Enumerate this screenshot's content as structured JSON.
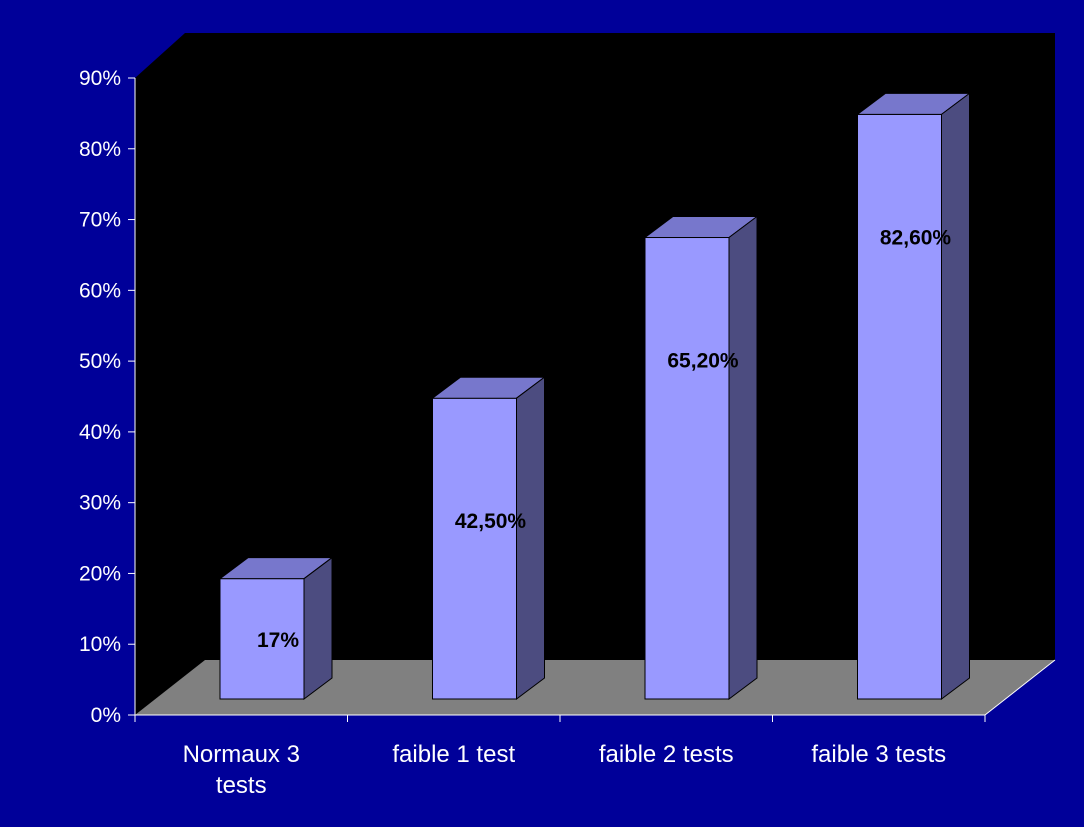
{
  "colors": {
    "background": "#000099",
    "plot_back": "#000000",
    "floor": "#808080",
    "bar_front": "#9999ff",
    "bar_top": "#7777cc",
    "bar_side": "#4c4c80",
    "text": "#ffffff",
    "data_label": "#000000"
  },
  "chart_data": {
    "type": "bar",
    "style": "3d-column",
    "categories": [
      [
        "Normaux 3",
        "tests"
      ],
      [
        "faible 1 test"
      ],
      [
        "faible 2 tests"
      ],
      [
        "faible 3 tests"
      ]
    ],
    "values": [
      17,
      42.5,
      65.2,
      82.6
    ],
    "data_labels": [
      "17%",
      "42,50%",
      "65,20%",
      "82,60%"
    ],
    "y_ticks": [
      "0%",
      "10%",
      "20%",
      "30%",
      "40%",
      "50%",
      "60%",
      "70%",
      "80%",
      "90%"
    ],
    "ylim": [
      0,
      90
    ],
    "y_unit": "%",
    "grid": false,
    "legend": "none"
  }
}
